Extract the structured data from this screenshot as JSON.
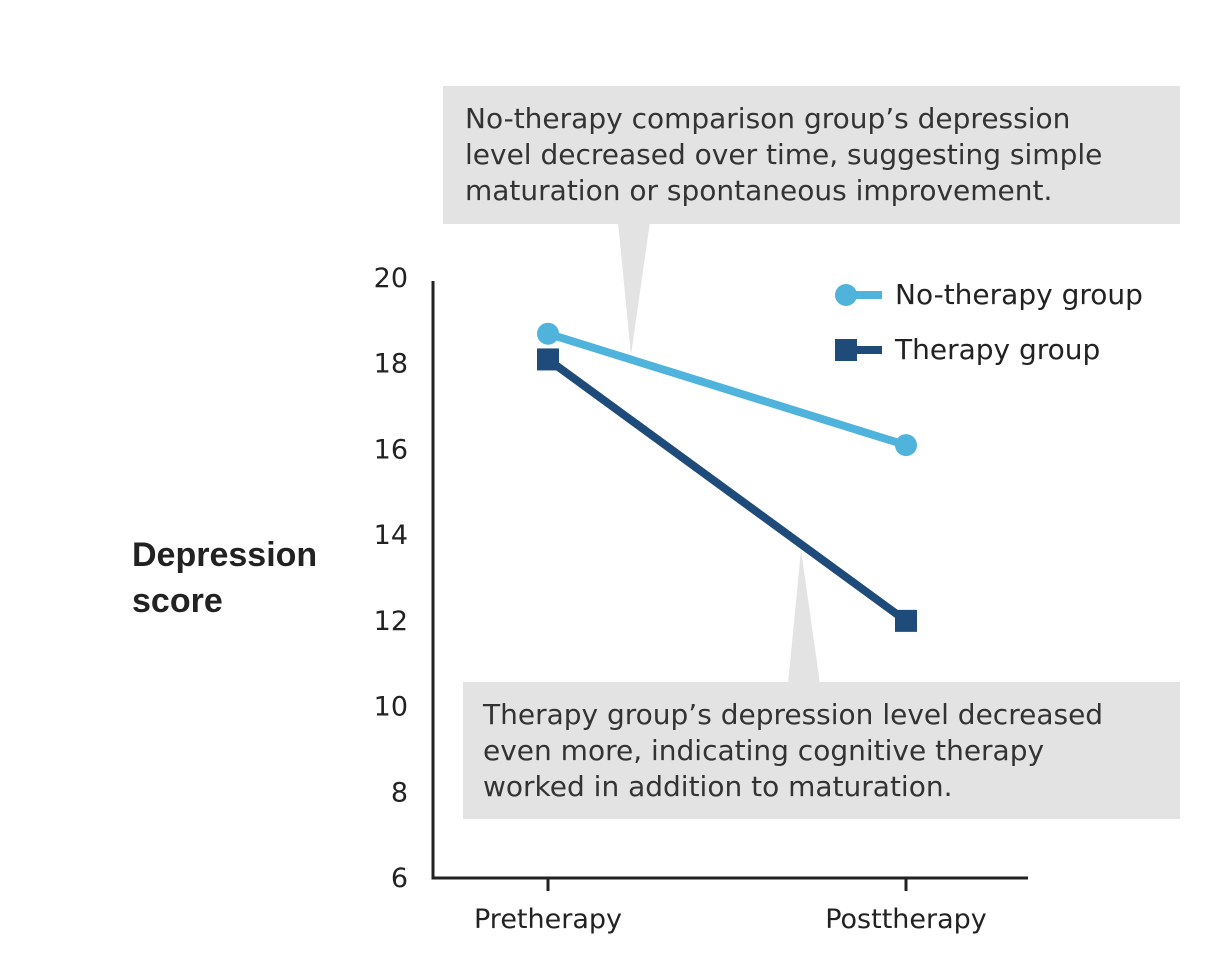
{
  "chart_data": {
    "type": "line",
    "title": "",
    "xlabel": "",
    "ylabel_lines": [
      "Depression",
      "score"
    ],
    "categories": [
      "Pretherapy",
      "Posttherapy"
    ],
    "ylim": [
      6,
      20
    ],
    "yticks": [
      6,
      8,
      10,
      12,
      14,
      16,
      18,
      20
    ],
    "grid": false,
    "legend_position": "top-right",
    "series": [
      {
        "name": "No-therapy group",
        "values": [
          18.7,
          16.1
        ],
        "color": "#4fb3dc",
        "marker": "circle"
      },
      {
        "name": "Therapy group",
        "values": [
          18.1,
          12.0
        ],
        "color": "#1f4b7a",
        "marker": "square"
      }
    ],
    "annotations": [
      {
        "lines": [
          "No-therapy comparison group’s depression",
          "level decreased over time, suggesting simple",
          "maturation or spontaneous improvement."
        ],
        "series": "No-therapy group"
      },
      {
        "lines": [
          "Therapy group’s depression level decreased",
          "even more, indicating cognitive therapy",
          "worked in addition to maturation."
        ],
        "series": "Therapy group"
      }
    ],
    "callout_color": "#e3e3e3",
    "axis_color": "#222222"
  }
}
